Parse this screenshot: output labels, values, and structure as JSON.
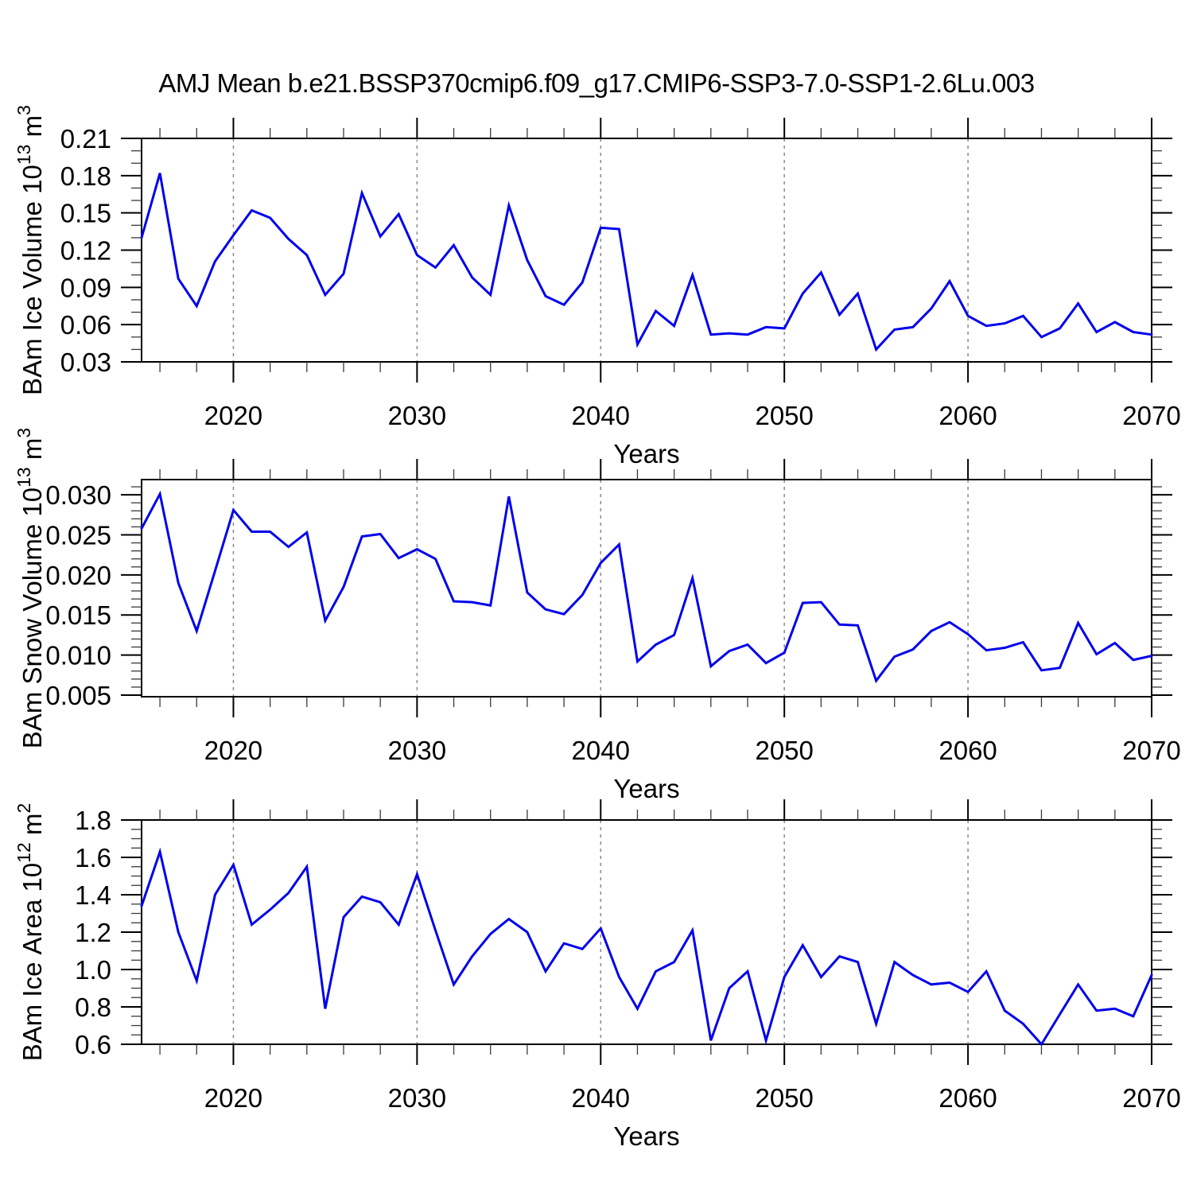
{
  "title": "AMJ Mean b.e21.BSSP370cmip6.f09_g17.CMIP6-SSP3-7.0-SSP1-2.6Lu.003",
  "colors": {
    "line": "#0000EB",
    "axis": "#000000",
    "minor_tick": "#3a3a3a",
    "grid": "#8a8a8a",
    "background": "#ffffff",
    "text": "#000000"
  },
  "x_axis": {
    "label": "Years",
    "start_year": 2015,
    "end_year": 2070,
    "major_ticks": [
      2020,
      2030,
      2040,
      2050,
      2060,
      2070
    ],
    "major_tick_labels": [
      "2020",
      "2030",
      "2040",
      "2050",
      "2060",
      "2070"
    ],
    "minor_step_years": 2,
    "grid_years": [
      2020,
      2030,
      2040,
      2050,
      2060
    ]
  },
  "chart_data": [
    {
      "type": "line",
      "id": "ice-volume",
      "ylabel_parts": [
        [
          "BAm Ice Volume 10",
          false
        ],
        [
          "13",
          true
        ],
        [
          " m",
          false
        ],
        [
          "3",
          true
        ]
      ],
      "ylabel_plain": "BAm Ice Volume 10^13 m^3",
      "xlabel": "Years",
      "ylim": [
        0.03,
        0.21
      ],
      "yticks": [
        0.03,
        0.06,
        0.09,
        0.12,
        0.15,
        0.18,
        0.21
      ],
      "ytick_labels": [
        "0.03",
        "0.06",
        "0.09",
        "0.12",
        "0.15",
        "0.18",
        "0.21"
      ],
      "yminor_step": 0.01,
      "x_first_year": 2015,
      "values": [
        0.13,
        0.182,
        0.097,
        0.075,
        0.111,
        0.132,
        0.152,
        0.146,
        0.129,
        0.116,
        0.084,
        0.101,
        0.166,
        0.131,
        0.149,
        0.116,
        0.106,
        0.124,
        0.098,
        0.084,
        0.156,
        0.112,
        0.083,
        0.076,
        0.094,
        0.138,
        0.137,
        0.044,
        0.071,
        0.059,
        0.1,
        0.052,
        0.053,
        0.052,
        0.058,
        0.057,
        0.085,
        0.102,
        0.068,
        0.085,
        0.04,
        0.056,
        0.058,
        0.073,
        0.095,
        0.067,
        0.059,
        0.061,
        0.067,
        0.05,
        0.057,
        0.077,
        0.054,
        0.062,
        0.054,
        0.052
      ]
    },
    {
      "type": "line",
      "id": "snow-volume",
      "ylabel_parts": [
        [
          "BAm Snow Volume 10",
          false
        ],
        [
          "13",
          true
        ],
        [
          " m",
          false
        ],
        [
          "3",
          true
        ]
      ],
      "ylabel_plain": "BAm Snow Volume 10^13 m^3",
      "xlabel": "Years",
      "ylim": [
        0.0048,
        0.0319
      ],
      "yticks": [
        0.005,
        0.01,
        0.015,
        0.02,
        0.025,
        0.03
      ],
      "ytick_labels": [
        "0.005",
        "0.010",
        "0.015",
        "0.020",
        "0.025",
        "0.030"
      ],
      "yminor_step": 0.001,
      "x_first_year": 2015,
      "values": [
        0.0258,
        0.0301,
        0.019,
        0.013,
        0.0205,
        0.0281,
        0.0254,
        0.0254,
        0.0235,
        0.0253,
        0.0143,
        0.0185,
        0.0248,
        0.0251,
        0.0221,
        0.0232,
        0.022,
        0.0167,
        0.0166,
        0.0162,
        0.0298,
        0.0178,
        0.0157,
        0.0151,
        0.0175,
        0.0215,
        0.0238,
        0.0092,
        0.0113,
        0.0125,
        0.0196,
        0.0086,
        0.0105,
        0.0113,
        0.009,
        0.0103,
        0.0165,
        0.0166,
        0.0138,
        0.0137,
        0.0068,
        0.0098,
        0.0107,
        0.013,
        0.0141,
        0.0126,
        0.0106,
        0.0109,
        0.0116,
        0.0081,
        0.0084,
        0.014,
        0.0101,
        0.0115,
        0.0094,
        0.0099
      ]
    },
    {
      "type": "line",
      "id": "ice-area",
      "ylabel_parts": [
        [
          "BAm Ice Area 10",
          false
        ],
        [
          "12",
          true
        ],
        [
          " m",
          false
        ],
        [
          "2",
          true
        ]
      ],
      "ylabel_plain": "BAm Ice Area 10^12 m^2",
      "xlabel": "Years",
      "ylim": [
        0.6,
        1.8
      ],
      "yticks": [
        0.6,
        0.8,
        1.0,
        1.2,
        1.4,
        1.6,
        1.8
      ],
      "ytick_labels": [
        "0.6",
        "0.8",
        "1.0",
        "1.2",
        "1.4",
        "1.6",
        "1.8"
      ],
      "yminor_step": 0.05,
      "x_first_year": 2015,
      "values": [
        1.34,
        1.63,
        1.2,
        0.94,
        1.4,
        1.56,
        1.24,
        1.32,
        1.41,
        1.55,
        0.79,
        1.28,
        1.39,
        1.36,
        1.24,
        1.51,
        1.21,
        0.92,
        1.07,
        1.19,
        1.27,
        1.2,
        0.99,
        1.14,
        1.11,
        1.22,
        0.96,
        0.79,
        0.99,
        1.04,
        1.21,
        0.62,
        0.9,
        0.99,
        0.62,
        0.96,
        1.13,
        0.96,
        1.07,
        1.04,
        0.71,
        1.04,
        0.97,
        0.92,
        0.93,
        0.88,
        0.99,
        0.78,
        0.71,
        0.6,
        0.76,
        0.92,
        0.78,
        0.79,
        0.75,
        0.97
      ]
    }
  ]
}
